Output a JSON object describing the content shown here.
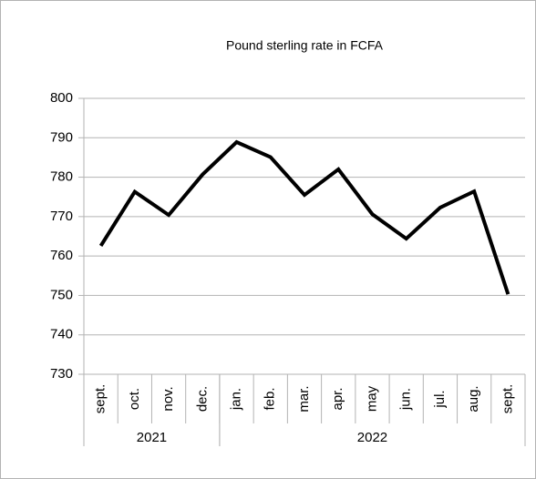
{
  "chart_data": {
    "type": "line",
    "title": "Pound sterling rate in FCFA",
    "categories": [
      "sept.",
      "oct.",
      "nov.",
      "dec.",
      "jan.",
      "feb.",
      "mar.",
      "apr.",
      "may",
      "jun.",
      "jul.",
      "aug.",
      "sept."
    ],
    "category_groups": [
      {
        "label": "2021",
        "span": 4
      },
      {
        "label": "2022",
        "span": 9
      }
    ],
    "series": [
      {
        "color": "#000000",
        "values": [
          762.6,
          776.3,
          770.4,
          780.7,
          788.9,
          785.1,
          775.5,
          782,
          770.6,
          764.4,
          772.3,
          776.4,
          750.3
        ]
      }
    ],
    "ylim": [
      730,
      800
    ],
    "yticks": [
      730,
      740,
      750,
      760,
      770,
      780,
      790,
      800
    ],
    "grid": true
  }
}
